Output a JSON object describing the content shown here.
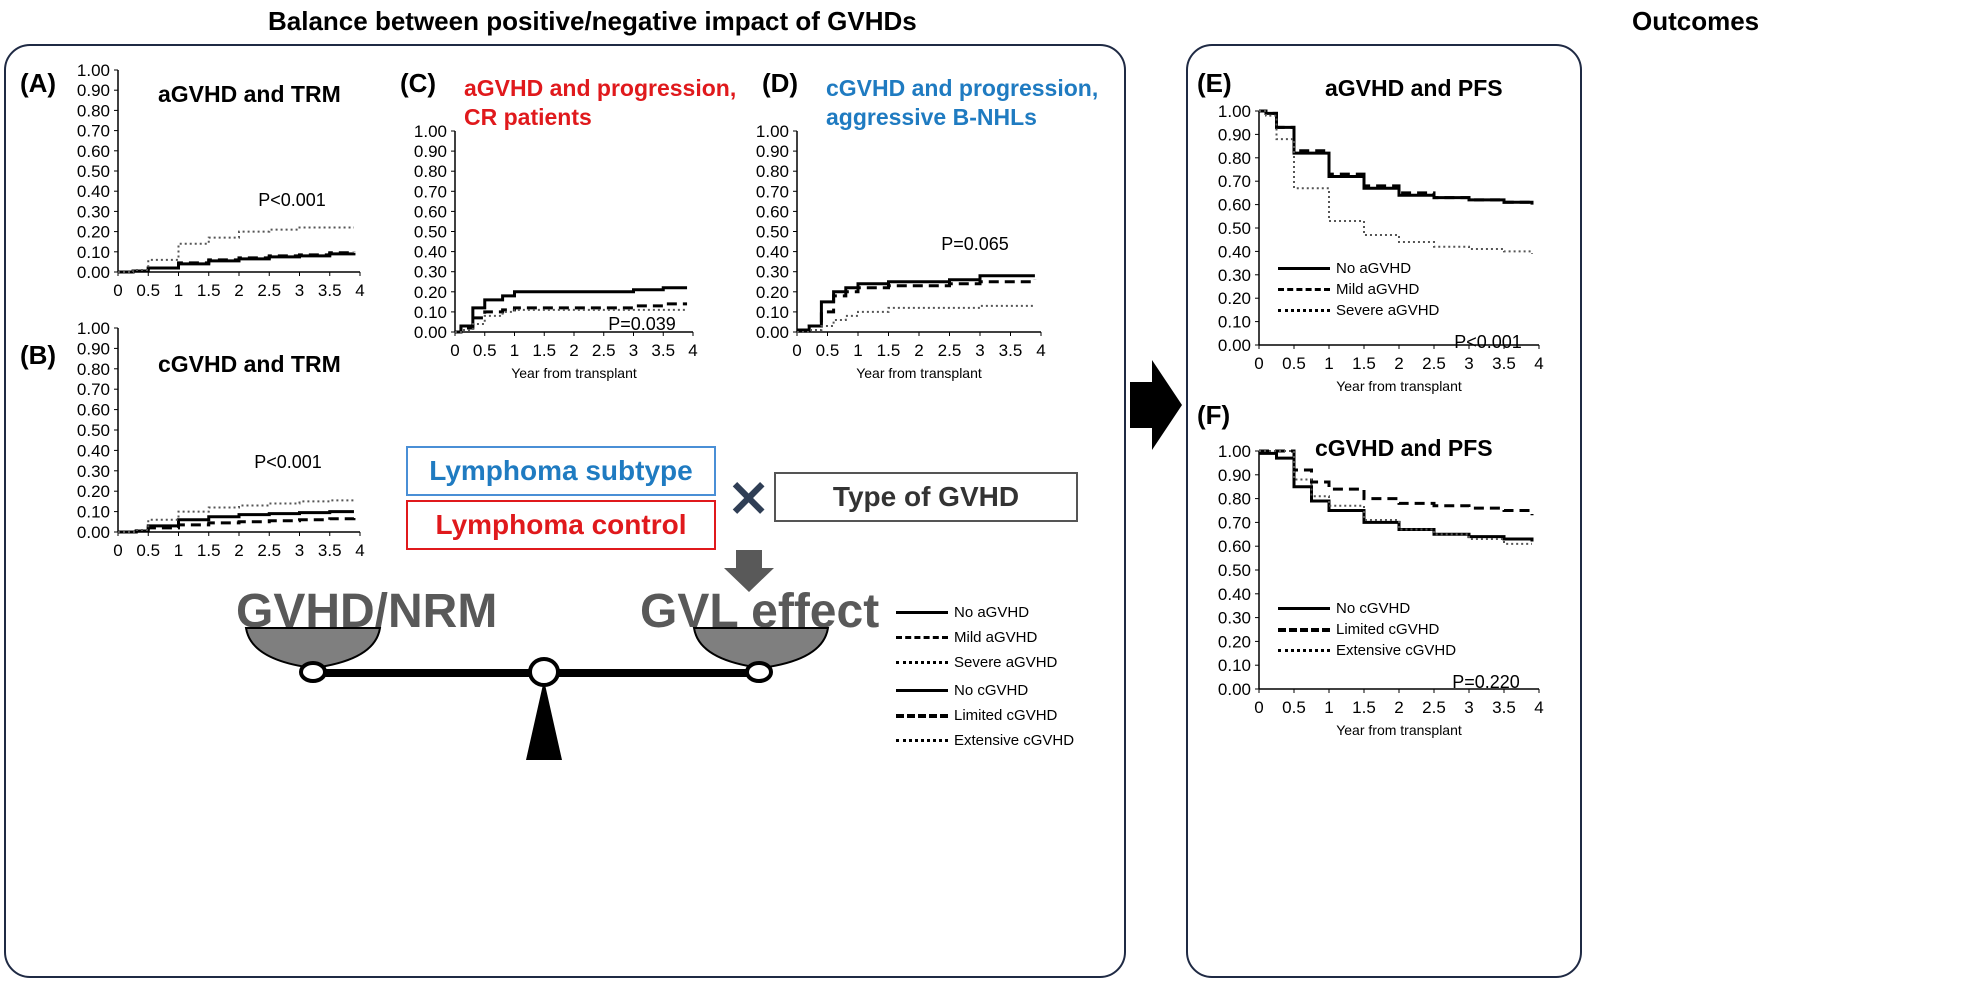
{
  "header": {
    "left": "Balance between positive/negative impact of GVHDs",
    "right": "Outcomes"
  },
  "panels": {
    "A": {
      "label": "(A)",
      "title": "aGVHD and TRM",
      "pvalue": "P<0.001"
    },
    "B": {
      "label": "(B)",
      "title": "cGVHD and TRM",
      "pvalue": "P<0.001"
    },
    "C": {
      "label": "(C)",
      "title_line1": "aGVHD and progression,",
      "title_line2": "CR patients",
      "pvalue": "P=0.039",
      "xlabel": "Year from transplant"
    },
    "D": {
      "label": "(D)",
      "title_line1": "cGVHD and progression,",
      "title_line2": "aggressive B-NHLs",
      "pvalue": "P=0.065",
      "xlabel": "Year from transplant"
    },
    "E": {
      "label": "(E)",
      "title": "aGVHD and PFS",
      "pvalue": "P<0.001",
      "xlabel": "Year from transplant"
    },
    "F": {
      "label": "(F)",
      "title": "cGVHD and PFS",
      "pvalue": "P=0.220",
      "xlabel": "Year from transplant"
    }
  },
  "axis": {
    "y_ticks": [
      "1.00",
      "0.90",
      "0.80",
      "0.70",
      "0.60",
      "0.50",
      "0.40",
      "0.30",
      "0.20",
      "0.10",
      "0.00"
    ],
    "x_ticks": [
      "0",
      "0.5",
      "1",
      "1.5",
      "2",
      "2.5",
      "3",
      "3.5",
      "4"
    ]
  },
  "concept": {
    "subtype": "Lymphoma subtype",
    "control": "Lymphoma control",
    "times": "×",
    "gvhd_type": "Type of GVHD",
    "left_pan": "GVHD/NRM",
    "right_pan": "GVL effect"
  },
  "legends": {
    "agvhd": [
      "No aGVHD",
      "Mild aGVHD",
      "Severe aGVHD"
    ],
    "cgvhd": [
      "No cGVHD",
      "Limited  cGVHD",
      "Extensive cGVHD"
    ]
  },
  "colors": {
    "red": "#e0191c",
    "blue": "#1f7bc1",
    "arrow": "#595959",
    "box_border": "#1f2a44"
  },
  "chart_data": [
    {
      "panel": "A",
      "type": "line",
      "title": "aGVHD and TRM",
      "x": [
        0,
        0.25,
        0.5,
        1,
        1.5,
        2,
        2.5,
        3,
        3.5,
        3.9
      ],
      "ylim": [
        0,
        1
      ],
      "series": [
        {
          "name": "No aGVHD",
          "values": [
            0,
            0.005,
            0.02,
            0.04,
            0.055,
            0.065,
            0.075,
            0.08,
            0.09,
            0.095
          ]
        },
        {
          "name": "Mild aGVHD",
          "values": [
            0,
            0.005,
            0.02,
            0.045,
            0.06,
            0.07,
            0.08,
            0.085,
            0.095,
            0.1
          ]
        },
        {
          "name": "Severe aGVHD",
          "values": [
            0,
            0.01,
            0.06,
            0.14,
            0.17,
            0.2,
            0.21,
            0.22,
            0.22,
            0.22
          ]
        }
      ]
    },
    {
      "panel": "B",
      "type": "line",
      "title": "cGVHD and TRM",
      "x": [
        0,
        0.3,
        0.5,
        1,
        1.5,
        2,
        2.5,
        3,
        3.5,
        3.9
      ],
      "ylim": [
        0,
        1
      ],
      "series": [
        {
          "name": "No cGVHD",
          "values": [
            0,
            0.005,
            0.03,
            0.06,
            0.075,
            0.085,
            0.09,
            0.095,
            0.1,
            0.1
          ]
        },
        {
          "name": "Limited cGVHD",
          "values": [
            0,
            0.005,
            0.02,
            0.035,
            0.045,
            0.05,
            0.055,
            0.06,
            0.065,
            0.075
          ]
        },
        {
          "name": "Extensive cGVHD",
          "values": [
            0,
            0.01,
            0.06,
            0.1,
            0.12,
            0.13,
            0.14,
            0.15,
            0.155,
            0.16
          ]
        }
      ]
    },
    {
      "panel": "C",
      "type": "line",
      "title": "aGVHD and progression, CR patients",
      "x": [
        0,
        0.1,
        0.3,
        0.5,
        0.8,
        1,
        2,
        3,
        3.5,
        3.9
      ],
      "ylim": [
        0,
        1
      ],
      "series": [
        {
          "name": "No aGVHD",
          "values": [
            0,
            0.03,
            0.12,
            0.16,
            0.18,
            0.2,
            0.2,
            0.21,
            0.22,
            0.22
          ]
        },
        {
          "name": "Mild aGVHD",
          "values": [
            0,
            0.02,
            0.07,
            0.1,
            0.11,
            0.12,
            0.12,
            0.13,
            0.14,
            0.14
          ]
        },
        {
          "name": "Severe aGVHD",
          "values": [
            0,
            0.01,
            0.04,
            0.08,
            0.1,
            0.11,
            0.11,
            0.11,
            0.11,
            0.11
          ]
        }
      ]
    },
    {
      "panel": "D",
      "type": "line",
      "title": "cGVHD and progression, aggressive B-NHLs",
      "x": [
        0,
        0.2,
        0.4,
        0.6,
        0.8,
        1,
        1.5,
        2.5,
        3,
        3.9
      ],
      "ylim": [
        0,
        1
      ],
      "series": [
        {
          "name": "No cGVHD",
          "values": [
            0.01,
            0.03,
            0.15,
            0.2,
            0.22,
            0.24,
            0.25,
            0.26,
            0.28,
            0.28
          ]
        },
        {
          "name": "Limited cGVHD",
          "values": [
            0.01,
            0.03,
            0.1,
            0.18,
            0.2,
            0.22,
            0.23,
            0.24,
            0.25,
            0.26
          ]
        },
        {
          "name": "Extensive cGVHD",
          "values": [
            0,
            0.01,
            0.03,
            0.06,
            0.08,
            0.1,
            0.12,
            0.12,
            0.13,
            0.13
          ]
        }
      ]
    },
    {
      "panel": "E",
      "type": "line",
      "title": "aGVHD and PFS",
      "x": [
        0,
        0.1,
        0.25,
        0.5,
        1,
        1.5,
        2,
        2.5,
        3,
        3.5,
        3.9
      ],
      "ylim": [
        0,
        1
      ],
      "series": [
        {
          "name": "No aGVHD",
          "values": [
            1.0,
            0.99,
            0.93,
            0.82,
            0.72,
            0.67,
            0.64,
            0.63,
            0.62,
            0.61,
            0.6
          ]
        },
        {
          "name": "Mild aGVHD",
          "values": [
            1.0,
            0.99,
            0.93,
            0.83,
            0.73,
            0.68,
            0.65,
            0.63,
            0.62,
            0.61,
            0.6
          ]
        },
        {
          "name": "Severe aGVHD",
          "values": [
            1.0,
            0.98,
            0.88,
            0.67,
            0.53,
            0.47,
            0.44,
            0.42,
            0.41,
            0.4,
            0.39
          ]
        }
      ]
    },
    {
      "panel": "F",
      "type": "line",
      "title": "cGVHD and PFS",
      "x": [
        0,
        0.25,
        0.5,
        0.75,
        1,
        1.5,
        2,
        2.5,
        3,
        3.5,
        3.9
      ],
      "ylim": [
        0,
        1
      ],
      "series": [
        {
          "name": "No cGVHD",
          "values": [
            0.99,
            0.97,
            0.85,
            0.79,
            0.75,
            0.7,
            0.67,
            0.65,
            0.64,
            0.63,
            0.62
          ]
        },
        {
          "name": "Limited cGVHD",
          "values": [
            1.0,
            1.0,
            0.92,
            0.87,
            0.84,
            0.8,
            0.78,
            0.77,
            0.76,
            0.75,
            0.73
          ]
        },
        {
          "name": "Extensive cGVHD",
          "values": [
            1.0,
            1.0,
            0.88,
            0.81,
            0.77,
            0.71,
            0.67,
            0.65,
            0.63,
            0.61,
            0.61
          ]
        }
      ]
    }
  ]
}
